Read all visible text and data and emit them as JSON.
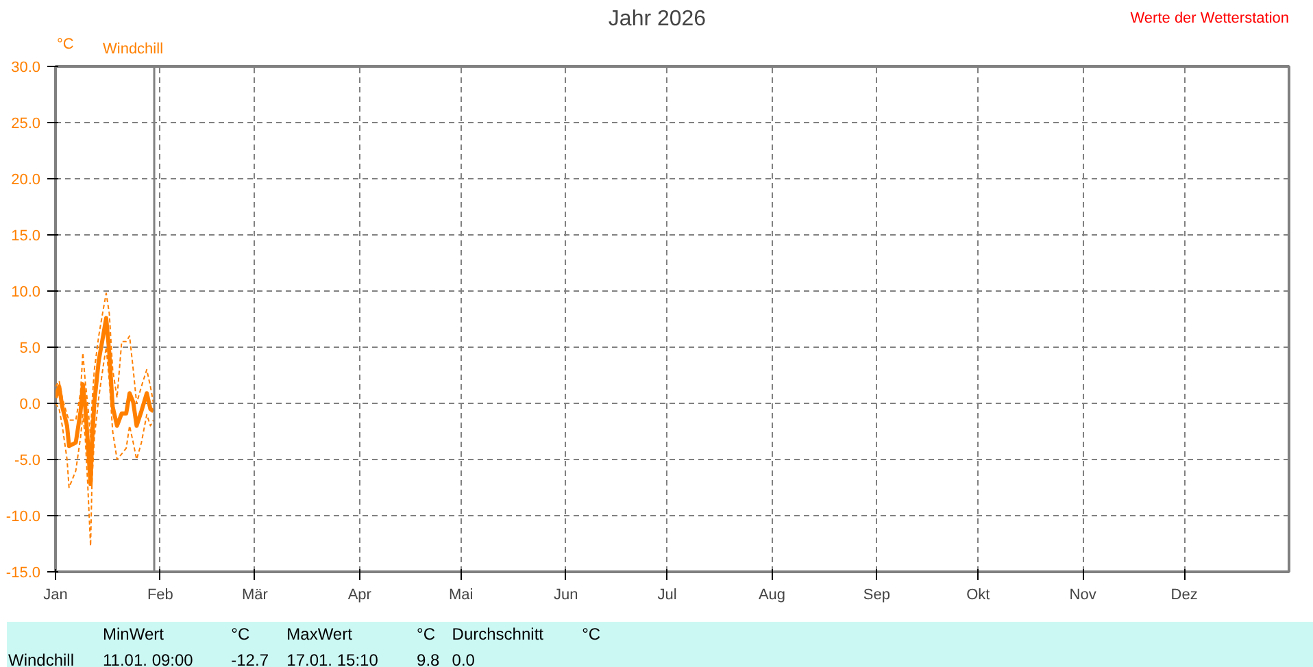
{
  "chart_data": {
    "type": "line",
    "title": "Jahr 2026",
    "ylabel": "°C",
    "annotations": [
      "Werte der Wetterstation",
      "Windchill",
      "MinWert",
      "°C",
      "11.01.  09:00",
      "-12.7",
      "MaxWert",
      "°C",
      "17.01.  15:10",
      "9.8",
      "Durchschnitt",
      "°C",
      "0.0"
    ],
    "x": [
      "2026-01-01T00:00",
      "2026-01-02T02:00",
      "2026-01-03T00:00",
      "2026-01-04T10:00",
      "2026-01-05T00:00",
      "2026-01-07T00:00",
      "2026-01-08T10:00",
      "2026-01-09T02:00",
      "2026-01-09T19:00",
      "2026-01-10T12:00",
      "2026-01-11T09:00",
      "2026-01-11T19:00",
      "2026-01-12T12:00",
      "2026-01-13T19:00",
      "2026-01-15T05:00",
      "2026-01-16T00:00",
      "2026-01-16T22:00",
      "2026-01-17T22:00",
      "2026-01-19T05:00",
      "2026-01-20T14:00",
      "2026-01-21T22:00",
      "2026-01-22T22:00",
      "2026-01-24T00:00",
      "2026-01-25T00:00",
      "2026-01-26T10:00",
      "2026-01-28T00:00",
      "2026-01-29T02:00",
      "2026-01-30T00:00"
    ],
    "series": [
      {
        "name": "Windchill",
        "color": "#ff8000",
        "values": [
          0.5,
          1.5,
          -0.3,
          -2,
          -3.8,
          -3.5,
          -0.7,
          1.7,
          -0.3,
          -3.2,
          -7.2,
          -3.5,
          0.1,
          3.8,
          6.2,
          7.6,
          4.5,
          -0.3,
          -2,
          -0.9,
          -0.9,
          0.9,
          0.1,
          -2,
          -0.7,
          0.9,
          -0.5,
          -0.7
        ]
      },
      {
        "color": "#ff8000",
        "line_style": "dashed",
        "values": [
          1.5,
          2,
          0.5,
          -1,
          -1.5,
          -1.5,
          1,
          4.5,
          2,
          0,
          -3,
          0,
          3,
          6,
          8.5,
          9.8,
          8,
          3,
          0.5,
          5.5,
          5.5,
          6,
          3,
          0,
          1.5,
          3,
          1.5,
          0
        ]
      },
      {
        "color": "#ff8000",
        "line_style": "dashed",
        "values": [
          0,
          -0.5,
          -2,
          -5,
          -7.5,
          -6,
          -3,
          -1,
          -3,
          -7,
          -12.7,
          -7,
          -3,
          0.5,
          3.5,
          5,
          2,
          -2.5,
          -5,
          -4.5,
          -4,
          -2,
          -3.5,
          -5,
          -3.5,
          -1,
          -2,
          -1.5
        ]
      }
    ],
    "xlim": [
      "2026-01-01",
      "2027-01-01"
    ],
    "xticks": [
      {
        "value": "2026-01-01",
        "label": "Jan"
      },
      {
        "value": "2026-02-01",
        "label": "Feb"
      },
      {
        "value": "2026-03-01",
        "label": "Mär"
      },
      {
        "value": "2026-04-01",
        "label": "Apr"
      },
      {
        "value": "2026-05-01",
        "label": "Mai"
      },
      {
        "value": "2026-06-01",
        "label": "Jun"
      },
      {
        "value": "2026-07-01",
        "label": "Jul"
      },
      {
        "value": "2026-08-01",
        "label": "Aug"
      },
      {
        "value": "2026-09-01",
        "label": "Sep"
      },
      {
        "value": "2026-10-01",
        "label": "Okt"
      },
      {
        "value": "2026-11-01",
        "label": "Nov"
      },
      {
        "value": "2026-12-01",
        "label": "Dez"
      }
    ],
    "ylim": [
      -15,
      30
    ],
    "yticks": [
      {
        "value": -15,
        "label": "-15.0"
      },
      {
        "value": -10,
        "label": "-10.0"
      },
      {
        "value": -5,
        "label": "-5.0"
      },
      {
        "value": 0,
        "label": "0.0"
      },
      {
        "value": 5,
        "label": "5.0"
      },
      {
        "value": 10,
        "label": "10.0"
      },
      {
        "value": 15,
        "label": "15.0"
      },
      {
        "value": 20,
        "label": "20.0"
      },
      {
        "value": 25,
        "label": "25.0"
      },
      {
        "value": 30,
        "label": "30.0"
      }
    ],
    "ref_lines": [
      {
        "axis": "x",
        "value": "2026-01-30T05:00",
        "color": "#808080"
      }
    ],
    "grid": true,
    "legend": "top left",
    "line_style": "solid",
    "marker": "none"
  }
}
